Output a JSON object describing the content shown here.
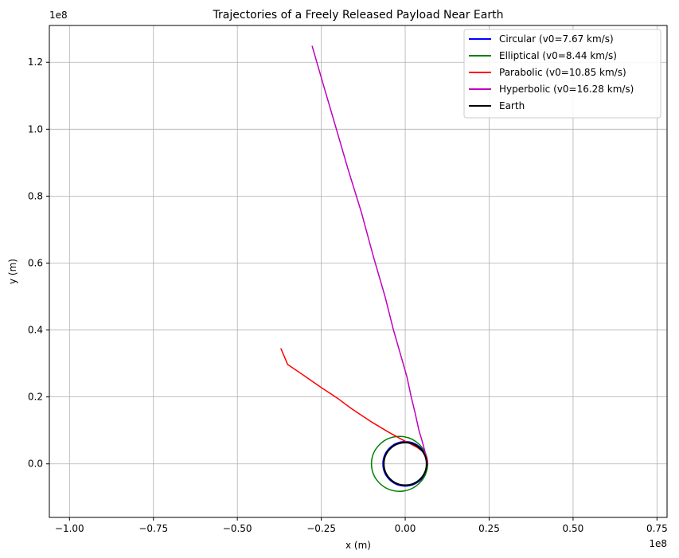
{
  "chart_data": {
    "type": "line",
    "title": "Trajectories of a Freely Released Payload Near Earth",
    "xlabel": "x (m)",
    "ylabel": "y (m)",
    "x_offset_label": "1e8",
    "y_offset_label": "1e8",
    "xlim": [
      -1.06,
      0.78
    ],
    "ylim": [
      -0.16,
      1.31
    ],
    "xticks": [
      -1.0,
      -0.75,
      -0.5,
      -0.25,
      0.0,
      0.25,
      0.5,
      0.75
    ],
    "xtick_labels": [
      "−1.00",
      "−0.75",
      "−0.50",
      "−0.25",
      "0.00",
      "0.25",
      "0.50",
      "0.75"
    ],
    "yticks": [
      0.0,
      0.2,
      0.4,
      0.6,
      0.8,
      1.0,
      1.2
    ],
    "ytick_labels": [
      "0.0",
      "0.2",
      "0.4",
      "0.6",
      "0.8",
      "1.0",
      "1.2"
    ],
    "grid": true,
    "legend_position": "top-right",
    "series": [
      {
        "name": "Circular (v0=7.67 km/s)",
        "color": "#0000ff",
        "kind": "ellipse",
        "center": [
          0.0,
          0.0
        ],
        "rx": 0.0665,
        "ry": 0.0665
      },
      {
        "name": "Elliptical (v0=8.44 km/s)",
        "color": "#008000",
        "kind": "ellipse",
        "center": [
          -0.017,
          0.0
        ],
        "rx": 0.0835,
        "ry": 0.082
      },
      {
        "name": "Parabolic (v0=10.85 km/s)",
        "color": "#ff0000",
        "kind": "path",
        "points": [
          [
            0.0665,
            0.0
          ],
          [
            0.066,
            0.01
          ],
          [
            0.0636,
            0.02
          ],
          [
            0.058,
            0.03
          ],
          [
            0.048,
            0.04
          ],
          [
            0.034,
            0.05
          ],
          [
            0.015,
            0.06
          ],
          [
            -0.014,
            0.075
          ],
          [
            -0.05,
            0.095
          ],
          [
            -0.1,
            0.125
          ],
          [
            -0.16,
            0.165
          ],
          [
            -0.2,
            0.195
          ],
          [
            -0.25,
            0.228
          ],
          [
            -0.3,
            0.263
          ],
          [
            -0.35,
            0.297
          ],
          [
            -0.37,
            0.344
          ]
        ]
      },
      {
        "name": "Hyperbolic (v0=16.28 km/s)",
        "color": "#bf00bf",
        "kind": "path",
        "points": [
          [
            0.0665,
            0.0
          ],
          [
            0.062,
            0.02
          ],
          [
            0.058,
            0.04
          ],
          [
            0.05,
            0.07
          ],
          [
            0.041,
            0.1
          ],
          [
            0.03,
            0.15
          ],
          [
            0.018,
            0.2
          ],
          [
            0.005,
            0.26
          ],
          [
            -0.012,
            0.32
          ],
          [
            -0.035,
            0.4
          ],
          [
            -0.06,
            0.5
          ],
          [
            -0.095,
            0.62
          ],
          [
            -0.13,
            0.75
          ],
          [
            -0.17,
            0.88
          ],
          [
            -0.205,
            1.0
          ],
          [
            -0.24,
            1.12
          ],
          [
            -0.277,
            1.248
          ]
        ]
      },
      {
        "name": "Earth",
        "color": "#000000",
        "kind": "ellipse",
        "center": [
          0.0,
          0.0
        ],
        "rx": 0.0637,
        "ry": 0.0637
      }
    ]
  }
}
